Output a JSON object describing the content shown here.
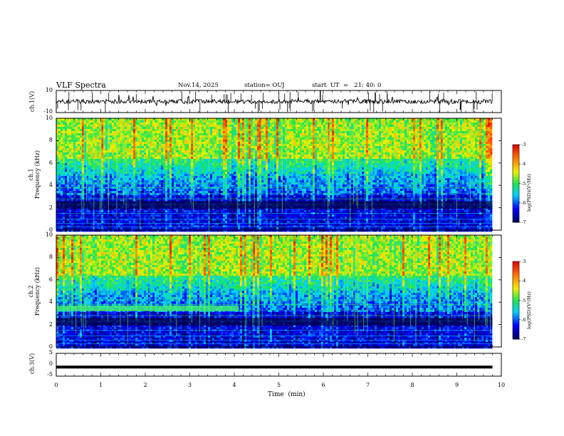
{
  "header": {
    "title": "VLF Spectra",
    "date": "Nov.14, 2025",
    "station": "station= OUJ",
    "start": "start  UT  =   21: 40: 0"
  },
  "chart_data": [
    {
      "type": "line",
      "panel": "ch1-waveform",
      "ylabel": "ch.1(V)",
      "ylim": [
        -10,
        10
      ],
      "yticks": [
        "10",
        "-10"
      ],
      "xlim": [
        0,
        10
      ],
      "baseline": 0
    },
    {
      "type": "heatmap",
      "panel": "ch1-spectrogram",
      "ylabel": "ch.1\nFrequency  (kHz)",
      "ylabel_line1": "ch.1",
      "ylabel_line2": "Frequency  (kHz)",
      "ylim": [
        0,
        10
      ],
      "yticks": [
        "0",
        "2",
        "4",
        "6",
        "8",
        "10"
      ],
      "xlim": [
        0,
        10
      ],
      "data_extent_min": 9.8,
      "colorbar": {
        "label": "log(PSD)(V²/Hz)",
        "range": [
          -7,
          -3
        ],
        "ticks": [
          "-3",
          "-4",
          "-5",
          "-6",
          "-7"
        ]
      }
    },
    {
      "type": "heatmap",
      "panel": "ch2-spectrogram",
      "ylabel_line1": "ch.2",
      "ylabel_line2": "Frequency  (kHz)",
      "ylim": [
        0,
        10
      ],
      "yticks": [
        "0",
        "2",
        "4",
        "6",
        "8",
        "10"
      ],
      "xlim": [
        0,
        10
      ],
      "data_extent_min": 9.8,
      "colorbar": {
        "label": "log(PSD)(V²/Hz)",
        "range": [
          -7,
          -3
        ],
        "ticks": [
          "-3",
          "-4",
          "-5",
          "-6",
          "-7"
        ]
      }
    },
    {
      "type": "line",
      "panel": "ch3-waveform",
      "ylabel": "ch.3(V)",
      "ylim": [
        -5,
        5
      ],
      "yticks": [
        "5",
        "0",
        "-5"
      ],
      "xlim": [
        0,
        10
      ],
      "baseline": -1
    }
  ],
  "xaxis": {
    "label": "Time  (min)",
    "ticks": [
      "0",
      "1",
      "2",
      "3",
      "4",
      "5",
      "6",
      "7",
      "8",
      "9",
      "10"
    ]
  },
  "colorbar_label_text": "log(PSD)(V²/Hz)",
  "colors": {
    "dark": "#00006a",
    "blue": "#0000ff",
    "cyan": "#00d8ff",
    "green": "#22e34a",
    "yellow": "#f0f000",
    "red": "#e00000"
  }
}
